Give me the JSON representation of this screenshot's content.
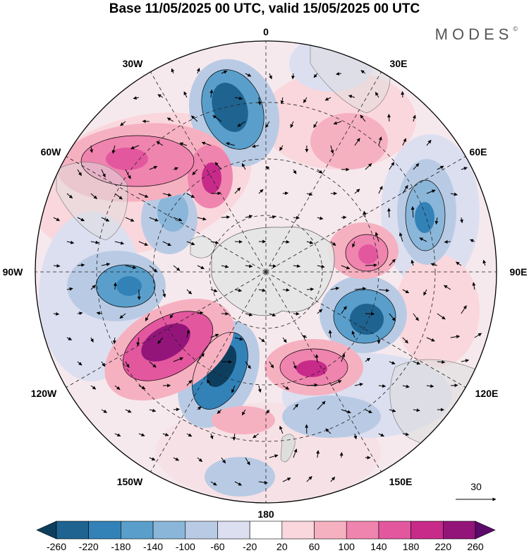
{
  "title": "Base 11/05/2025 00 UTC, valid 15/05/2025 00 UTC",
  "brand": "MODES",
  "brand_mark": "©",
  "longitude_labels": {
    "n": "0",
    "e30": "30E",
    "e60": "60E",
    "e90": "90E",
    "e120": "120E",
    "e150": "150E",
    "s": "180",
    "w150": "150W",
    "w120": "120W",
    "w90": "90W",
    "w60": "60W",
    "w30": "30W"
  },
  "reference_vector": "30",
  "colorbar": {
    "ticks": [
      "-260",
      "-220",
      "-180",
      "-140",
      "-100",
      "-60",
      "-20",
      "20",
      "60",
      "100",
      "140",
      "180",
      "220",
      "260"
    ],
    "colors": [
      "#0e3e5e",
      "#1f6390",
      "#3282b8",
      "#5a9fcb",
      "#8ab6d9",
      "#b9cbe4",
      "#dcdff0",
      "#ffffff",
      "#fad7dc",
      "#f6b1c1",
      "#ef84ae",
      "#e3579f",
      "#c82a8a",
      "#93157a",
      "#5d0a6a"
    ]
  },
  "colors": {
    "neg_strong": "#1f6390",
    "neg_mid": "#5a9fcb",
    "neg_weak": "#b9cbe4",
    "pos_strong": "#c82a8a",
    "pos_mid": "#ef84ae",
    "pos_weak": "#fad7dc",
    "land": "#dcdcdc"
  }
}
